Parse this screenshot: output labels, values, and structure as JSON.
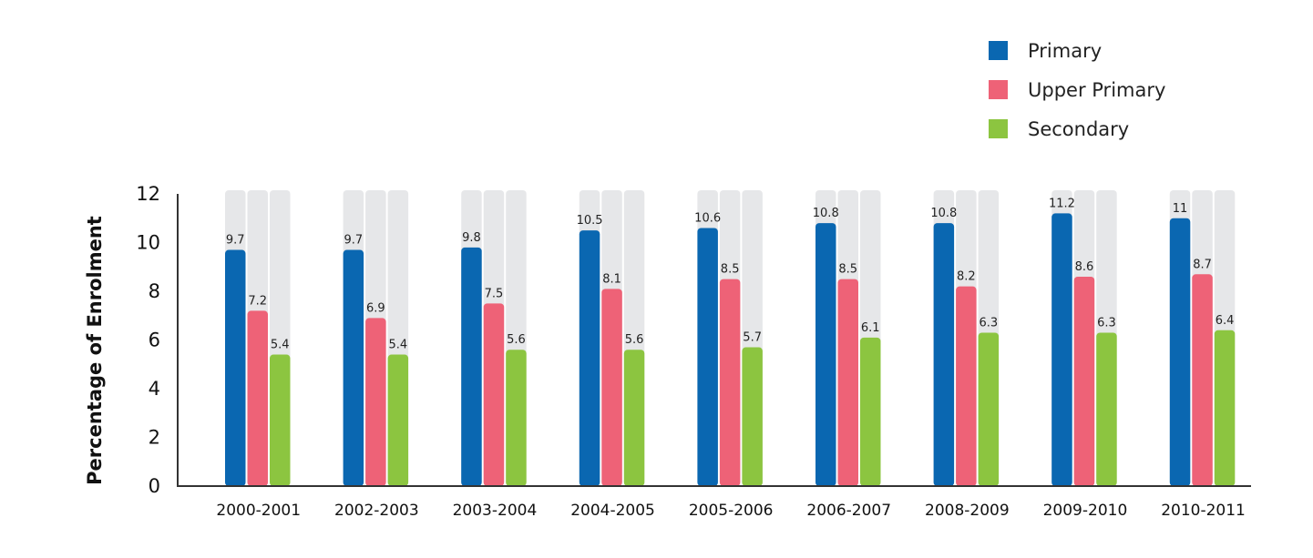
{
  "chart_data": {
    "type": "bar",
    "categories": [
      "2000-2001",
      "2002-2003",
      "2003-2004",
      "2004-2005",
      "2005-2006",
      "2006-2007",
      "2008-2009",
      "2009-2010",
      "2010-2011"
    ],
    "series": [
      {
        "name": "Primary",
        "color": "#0a67b1",
        "values": [
          9.7,
          9.7,
          9.8,
          10.5,
          10.6,
          10.8,
          10.8,
          11.2,
          11
        ]
      },
      {
        "name": "Upper Primary",
        "color": "#ee6277",
        "values": [
          7.2,
          6.9,
          7.5,
          8.1,
          8.5,
          8.5,
          8.2,
          8.6,
          8.7
        ]
      },
      {
        "name": "Secondary",
        "color": "#8cc540",
        "values": [
          5.4,
          5.4,
          5.6,
          5.6,
          5.7,
          6.1,
          6.3,
          6.3,
          6.4
        ]
      }
    ],
    "value_labels": [
      [
        "9.7",
        "9.7",
        "9.8",
        "10.5",
        "10.6",
        "10.8",
        "10.8",
        "11.2",
        "11"
      ],
      [
        "7.2",
        "6.9",
        "7.5",
        "8.1",
        "8.5",
        "8.5",
        "8.2",
        "8.6",
        "8.7"
      ],
      [
        "5.4",
        "5.4",
        "5.6",
        "5.6",
        "5.7",
        "6.1",
        "6.3",
        "6.3",
        "6.4"
      ]
    ],
    "yticks": [
      "0",
      "2",
      "4",
      "6",
      "8",
      "10",
      "12"
    ],
    "ylim": [
      0,
      12
    ],
    "xlabel": "",
    "ylabel": "Percentage of Enrolment",
    "background_bar_color": "#e6e7e9",
    "legend_position": "top-right",
    "grid": false
  }
}
